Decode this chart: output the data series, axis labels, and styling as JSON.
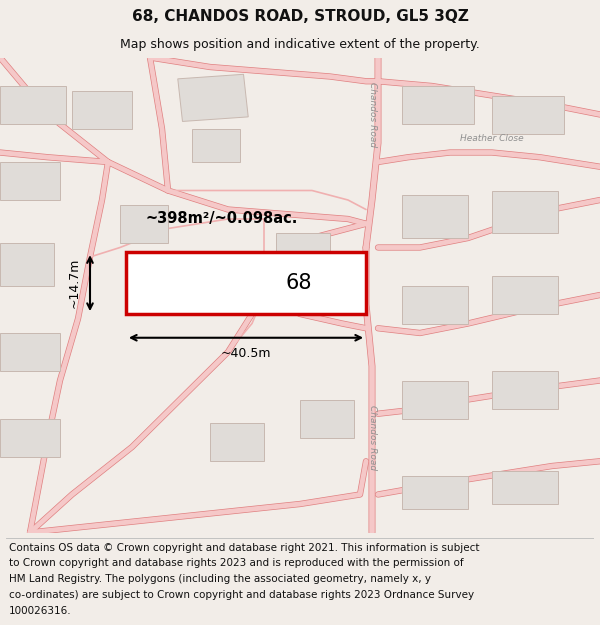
{
  "title": "68, CHANDOS ROAD, STROUD, GL5 3QZ",
  "subtitle": "Map shows position and indicative extent of the property.",
  "footer_lines": [
    "Contains OS data © Crown copyright and database right 2021. This information is subject",
    "to Crown copyright and database rights 2023 and is reproduced with the permission of",
    "HM Land Registry. The polygons (including the associated geometry, namely x, y",
    "co-ordinates) are subject to Crown copyright and database rights 2023 Ordnance Survey",
    "100026316."
  ],
  "area_label": "~398m²/~0.098ac.",
  "width_label": "~40.5m",
  "height_label": "~14.7m",
  "property_number": "68",
  "bg_color": "#f2ede8",
  "map_bg": "#f9f7f5",
  "road_fill": "#f5c8c8",
  "road_edge": "#e08080",
  "road_thin": "#f0b0b0",
  "property_fill": "#ffffff",
  "property_edge": "#cc0000",
  "building_fill": "#e0dcd8",
  "building_edge": "#c8b8b0",
  "road_label_color": "#909090",
  "title_fontsize": 11,
  "subtitle_fontsize": 9,
  "footer_fontsize": 7.5
}
